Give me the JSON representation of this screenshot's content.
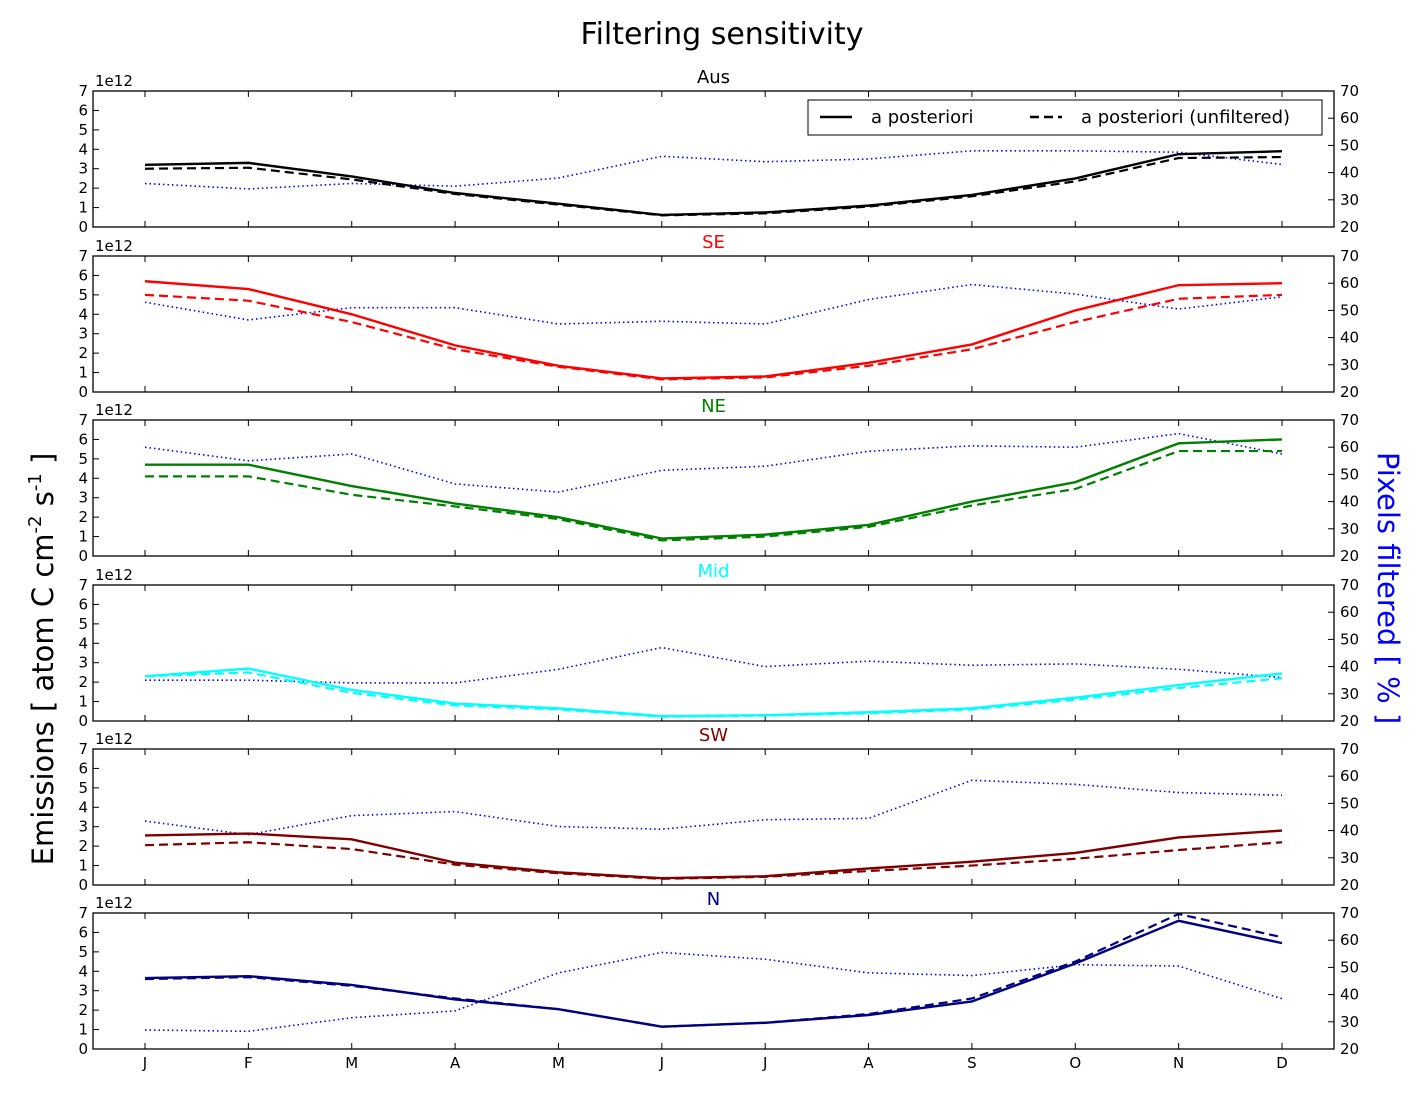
{
  "chart_data": {
    "type": "line",
    "title": "Filtering sensitivity",
    "ylabel_left": "Emissions [ atom C cm^-2 s^-1 ]",
    "ylabel_left_parts": {
      "main": "Emissions [ atom C cm",
      "exp1": "-2",
      "mid": " s",
      "exp2": "-1",
      "end": " ]"
    },
    "ylabel_right": "Pixels filtered [ % ]",
    "ylabel_right_color": "#0000ff",
    "left_offset_label": "1e12",
    "categories": [
      "J",
      "F",
      "M",
      "A",
      "M",
      "J",
      "J",
      "A",
      "S",
      "O",
      "N",
      "D"
    ],
    "ylim_left": [
      0,
      7
    ],
    "ylim_right": [
      20,
      70
    ],
    "yticks_left": [
      0,
      1,
      2,
      3,
      4,
      5,
      6,
      7
    ],
    "yticks_right": [
      20,
      30,
      40,
      50,
      60,
      70
    ],
    "legend": {
      "location": "top-right",
      "entries": [
        {
          "label": "a posteriori",
          "style": "solid"
        },
        {
          "label": "a posteriori (unfiltered)",
          "style": "dashed"
        }
      ]
    },
    "pixels_series_color": "#0000ff",
    "pixels_series_style": "dotted",
    "panels": [
      {
        "title": "Aus",
        "color": "#000000",
        "a_posteriori": [
          3.2,
          3.3,
          2.6,
          1.75,
          1.2,
          0.62,
          0.75,
          1.1,
          1.65,
          2.5,
          3.75,
          3.9
        ],
        "a_posteriori_unfiltered": [
          3.0,
          3.05,
          2.45,
          1.7,
          1.15,
          0.6,
          0.7,
          1.05,
          1.58,
          2.35,
          3.55,
          3.6
        ],
        "pixels_filtered": [
          36,
          34,
          36,
          35,
          38,
          46,
          44,
          45,
          48,
          48,
          47.5,
          43
        ]
      },
      {
        "title": "SE",
        "color": "#ff0000",
        "a_posteriori": [
          5.7,
          5.3,
          4.0,
          2.4,
          1.35,
          0.7,
          0.8,
          1.5,
          2.45,
          4.2,
          5.5,
          5.6
        ],
        "a_posteriori_unfiltered": [
          5.0,
          4.7,
          3.6,
          2.2,
          1.3,
          0.65,
          0.75,
          1.35,
          2.2,
          3.6,
          4.8,
          5.0
        ],
        "pixels_filtered": [
          53,
          46.5,
          51,
          51,
          45,
          46,
          45,
          54,
          59.5,
          56,
          50.5,
          55
        ]
      },
      {
        "title": "NE",
        "color": "#008000",
        "a_posteriori": [
          4.7,
          4.7,
          3.6,
          2.7,
          2.0,
          0.9,
          1.1,
          1.6,
          2.8,
          3.8,
          5.8,
          6.0
        ],
        "a_posteriori_unfiltered": [
          4.1,
          4.1,
          3.15,
          2.55,
          1.9,
          0.8,
          1.0,
          1.5,
          2.6,
          3.45,
          5.4,
          5.4
        ],
        "pixels_filtered": [
          60,
          55,
          57.5,
          46.5,
          43.5,
          51.5,
          53,
          58.5,
          60.5,
          60,
          65,
          57.5
        ]
      },
      {
        "title": "Mid",
        "color": "#00ffff",
        "a_posteriori": [
          2.3,
          2.7,
          1.6,
          0.9,
          0.65,
          0.25,
          0.3,
          0.45,
          0.65,
          1.2,
          1.85,
          2.45
        ],
        "a_posteriori_unfiltered": [
          2.3,
          2.5,
          1.45,
          0.8,
          0.6,
          0.22,
          0.28,
          0.4,
          0.6,
          1.1,
          1.7,
          2.2
        ],
        "pixels_filtered": [
          35,
          35,
          34,
          34,
          39,
          47,
          40,
          42,
          40.5,
          41,
          39,
          36
        ]
      },
      {
        "title": "SW",
        "color": "#800000",
        "a_posteriori": [
          2.55,
          2.65,
          2.35,
          1.15,
          0.65,
          0.35,
          0.45,
          0.85,
          1.2,
          1.65,
          2.45,
          2.8
        ],
        "a_posteriori_unfiltered": [
          2.05,
          2.2,
          1.85,
          1.05,
          0.6,
          0.32,
          0.42,
          0.72,
          1.0,
          1.35,
          1.8,
          2.2
        ],
        "pixels_filtered": [
          43.5,
          38.5,
          45.5,
          47,
          41.5,
          40.5,
          44,
          44.5,
          58.5,
          57,
          54,
          53
        ]
      },
      {
        "title": "N",
        "color": "#000080",
        "a_posteriori": [
          3.65,
          3.75,
          3.3,
          2.55,
          2.05,
          1.15,
          1.35,
          1.75,
          2.45,
          4.4,
          6.6,
          5.45
        ],
        "a_posteriori_unfiltered": [
          3.6,
          3.7,
          3.25,
          2.6,
          2.05,
          1.15,
          1.35,
          1.8,
          2.6,
          4.5,
          6.95,
          5.75
        ],
        "pixels_filtered": [
          27,
          26.5,
          31.5,
          34,
          48,
          55.5,
          53,
          48,
          47,
          51,
          50.5,
          38.5
        ]
      }
    ]
  }
}
